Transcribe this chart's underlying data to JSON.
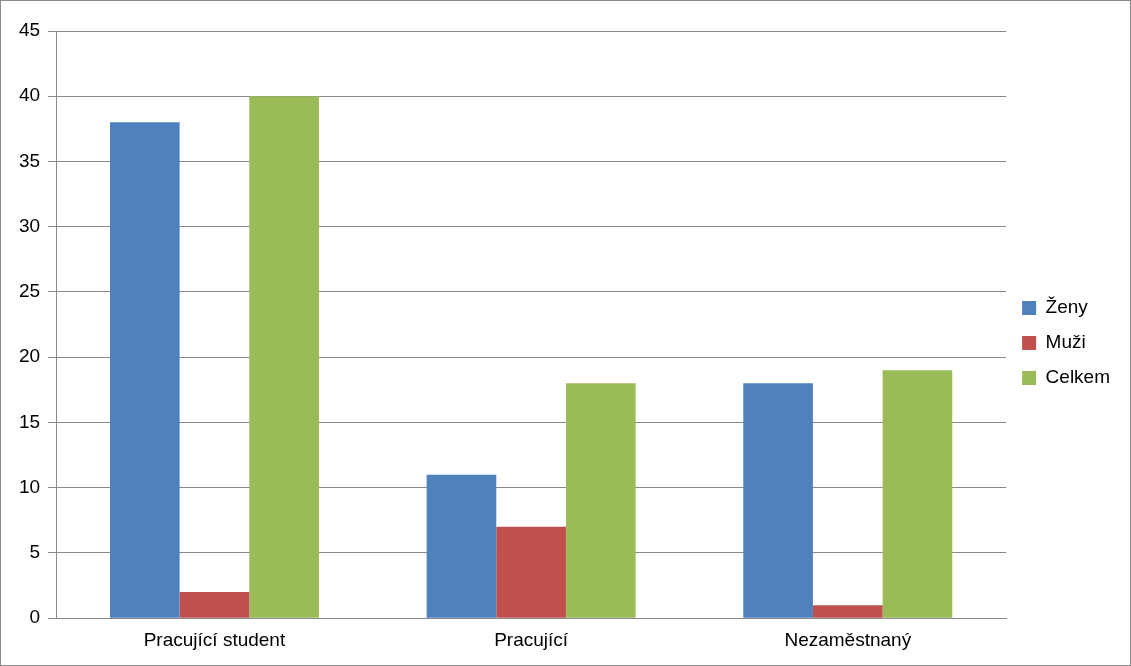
{
  "chart_data": {
    "type": "bar",
    "categories": [
      "Pracující student",
      "Pracující",
      "Nezaměstnaný"
    ],
    "series": [
      {
        "name": "Ženy",
        "color": "#4f81bd",
        "values": [
          38,
          11,
          18
        ]
      },
      {
        "name": "Muži",
        "color": "#c0504d",
        "values": [
          2,
          7,
          1
        ]
      },
      {
        "name": "Celkem",
        "color": "#9bbb59",
        "values": [
          40,
          18,
          19
        ]
      }
    ],
    "ylim": [
      0,
      45
    ],
    "yticks": [
      0,
      5,
      10,
      15,
      20,
      25,
      30,
      35,
      40,
      45
    ],
    "grid": "y",
    "legend": "right"
  }
}
